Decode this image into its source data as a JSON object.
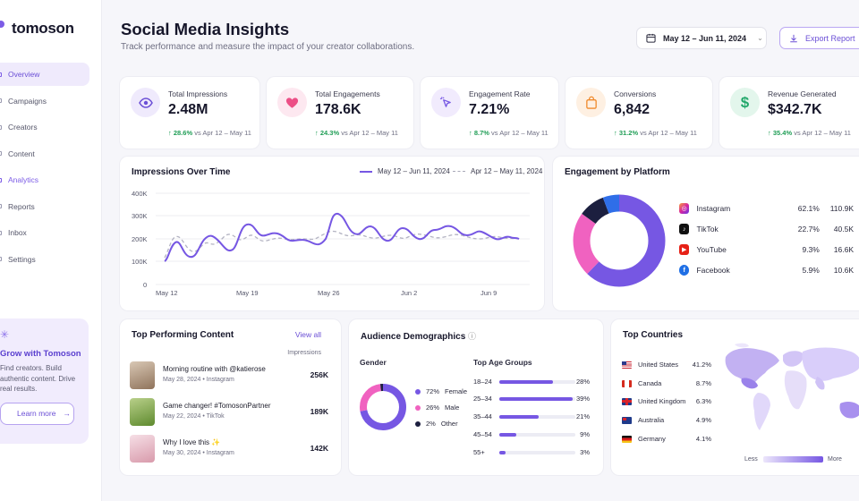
{
  "app": {
    "name": "tomoson"
  },
  "sidebar": {
    "items": [
      {
        "label": "Overview"
      },
      {
        "label": "Campaigns"
      },
      {
        "label": "Creators"
      },
      {
        "label": "Content"
      },
      {
        "label": "Analytics"
      },
      {
        "label": "Reports"
      },
      {
        "label": "Inbox"
      },
      {
        "label": "Settings"
      }
    ],
    "promo": {
      "title": "Grow with Tomoson",
      "text": "Find creators. Build authentic content. Drive real results.",
      "button": "Learn more",
      "button_arrow": "→"
    }
  },
  "header": {
    "title": "Social Media Insights",
    "subtitle": "Track performance and measure the impact of your creator collaborations.",
    "date_range": "May 12 – Jun 11, 2024",
    "export_label": "Export Report"
  },
  "kpis": [
    {
      "label": "Total Impressions",
      "value": "2.48M",
      "delta": "28.6%",
      "compare": "vs Apr 12 – May 11",
      "icon": "eye-icon",
      "color": "#7c5ce6",
      "bg": "#efeafc"
    },
    {
      "label": "Total Engagements",
      "value": "178.6K",
      "delta": "24.3%",
      "compare": "vs Apr 12 – May 11",
      "icon": "heart-icon",
      "color": "#ec4f86",
      "bg": "#fde8f0"
    },
    {
      "label": "Engagement Rate",
      "value": "7.21%",
      "delta": "8.7%",
      "compare": "vs Apr 12 – May 11",
      "icon": "cursor-click-icon",
      "color": "#8a5ce6",
      "bg": "#f1ebfd"
    },
    {
      "label": "Conversions",
      "value": "6,842",
      "delta": "31.2%",
      "compare": "vs Apr 12 – May 11",
      "icon": "shopping-bag-icon",
      "color": "#f08a2c",
      "bg": "#fef0e2"
    },
    {
      "label": "Revenue Generated",
      "value": "$342.7K",
      "delta": "35.4%",
      "compare": "vs Apr 12 – May 11",
      "icon": "dollar-icon",
      "color": "#23a86b",
      "bg": "#e3f6ec"
    }
  ],
  "impressions_chart": {
    "title": "Impressions Over Time",
    "legend_current": "May 12 – Jun 11, 2024",
    "legend_previous": "Apr 12 – May 11, 2024",
    "y_ticks": [
      "400K",
      "300K",
      "200K",
      "100K",
      "0"
    ],
    "x_ticks": [
      "May 12",
      "May 19",
      "May 26",
      "Jun 2",
      "Jun 9"
    ]
  },
  "engagement_platform": {
    "title": "Engagement by Platform",
    "platforms": [
      {
        "name": "Instagram",
        "pct": "62.1%",
        "value": "110.9K",
        "color": "#7657e3",
        "icon": "instagram-icon"
      },
      {
        "name": "TikTok",
        "pct": "22.7%",
        "value": "40.5K",
        "color": "#f062c0",
        "icon": "tiktok-icon"
      },
      {
        "name": "YouTube",
        "pct": "9.3%",
        "value": "16.6K",
        "color": "#1c1f3f",
        "icon": "youtube-icon"
      },
      {
        "name": "Facebook",
        "pct": "5.9%",
        "value": "10.6K",
        "color": "#2f6ee8",
        "icon": "facebook-icon"
      }
    ]
  },
  "top_content": {
    "title": "Top Performing Content",
    "view_all": "View all",
    "column": "Impressions",
    "rows": [
      {
        "name": "Morning routine with @katierose",
        "date": "May 28, 2024",
        "platform": "Instagram",
        "value": "256K"
      },
      {
        "name": "Game changer! #TomosonPartner",
        "date": "May 22, 2024",
        "platform": "TikTok",
        "value": "189K"
      },
      {
        "name": "Why I love this ✨",
        "date": "May 30, 2024",
        "platform": "Instagram",
        "value": "142K"
      }
    ]
  },
  "demographics": {
    "title": "Audience Demographics",
    "gender_title": "Gender",
    "gender": [
      {
        "pct": "72%",
        "label": "Female",
        "color": "#7657e3"
      },
      {
        "pct": "26%",
        "label": "Male",
        "color": "#f062c0"
      },
      {
        "pct": "2%",
        "label": "Other",
        "color": "#1c1f3f"
      }
    ],
    "age_title": "Top Age Groups",
    "ages": [
      {
        "label": "18–24",
        "pct": "28%",
        "fill": 0.7
      },
      {
        "label": "25–34",
        "pct": "39%",
        "fill": 0.97
      },
      {
        "label": "35–44",
        "pct": "21%",
        "fill": 0.52
      },
      {
        "label": "45–54",
        "pct": "9%",
        "fill": 0.22
      },
      {
        "label": "55+",
        "pct": "3%",
        "fill": 0.08
      }
    ]
  },
  "countries": {
    "title": "Top Countries",
    "rows": [
      {
        "name": "United States",
        "pct": "41.2%"
      },
      {
        "name": "Canada",
        "pct": "8.7%"
      },
      {
        "name": "United Kingdom",
        "pct": "6.3%"
      },
      {
        "name": "Australia",
        "pct": "4.9%"
      },
      {
        "name": "Germany",
        "pct": "4.1%"
      }
    ],
    "legend_less": "Less",
    "legend_more": "More"
  }
}
